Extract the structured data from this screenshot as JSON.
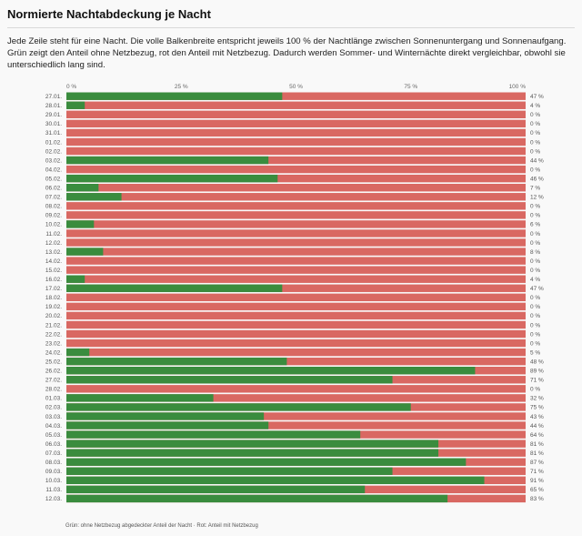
{
  "title": "Normierte Nachtabdeckung je Nacht",
  "description": "Jede Zeile steht für eine Nacht. Die volle Balkenbreite entspricht jeweils 100 % der Nachtlänge zwischen Sonnenuntergang und Sonnenaufgang. Grün zeigt den Anteil ohne Netzbezug, rot den Anteil mit Netzbezug. Dadurch werden Sommer- und Winternächte direkt vergleichbar, obwohl sie unterschiedlich lang sind.",
  "footnote": "Grün: ohne Netzbezug abgedeckter Anteil der Nacht · Rot: Anteil mit Netzbezug",
  "colors": {
    "covered": "#3a8c3e",
    "grid": "#d96862",
    "background": "#f9f9f9"
  },
  "chart_data": {
    "type": "bar",
    "orientation": "horizontal",
    "stacked": true,
    "xlim": [
      0,
      100
    ],
    "x_ticks": [
      "0 %",
      "25 %",
      "50 %",
      "75 %",
      "100 %"
    ],
    "categories": [
      "27.01.",
      "28.01.",
      "29.01.",
      "30.01.",
      "31.01.",
      "01.02.",
      "02.02.",
      "03.02.",
      "04.02.",
      "05.02.",
      "06.02.",
      "07.02.",
      "08.02.",
      "09.02.",
      "10.02.",
      "11.02.",
      "12.02.",
      "13.02.",
      "14.02.",
      "15.02.",
      "16.02.",
      "17.02.",
      "18.02.",
      "19.02.",
      "20.02.",
      "21.02.",
      "22.02.",
      "23.02.",
      "24.02.",
      "25.02.",
      "26.02.",
      "27.02.",
      "28.02.",
      "01.03.",
      "02.03.",
      "03.03.",
      "04.03.",
      "05.03.",
      "06.03.",
      "07.03.",
      "08.03.",
      "09.03.",
      "10.03.",
      "11.03.",
      "12.03."
    ],
    "values": [
      47,
      4,
      0,
      0,
      0,
      0,
      0,
      44,
      0,
      46,
      7,
      12,
      0,
      0,
      6,
      0,
      0,
      8,
      0,
      0,
      4,
      47,
      0,
      0,
      0,
      0,
      0,
      0,
      5,
      48,
      89,
      71,
      0,
      32,
      75,
      43,
      44,
      64,
      81,
      81,
      87,
      71,
      91,
      65,
      83
    ],
    "value_labels": [
      "47 %",
      "4 %",
      "0 %",
      "0 %",
      "0 %",
      "0 %",
      "0 %",
      "44 %",
      "0 %",
      "46 %",
      "7 %",
      "12 %",
      "0 %",
      "0 %",
      "6 %",
      "0 %",
      "0 %",
      "8 %",
      "0 %",
      "0 %",
      "4 %",
      "47 %",
      "0 %",
      "0 %",
      "0 %",
      "0 %",
      "0 %",
      "0 %",
      "5 %",
      "48 %",
      "89 %",
      "71 %",
      "0 %",
      "32 %",
      "75 %",
      "43 %",
      "44 %",
      "64 %",
      "81 %",
      "81 %",
      "87 %",
      "71 %",
      "91 %",
      "65 %",
      "83 %"
    ],
    "grid": false,
    "legend": "none"
  }
}
